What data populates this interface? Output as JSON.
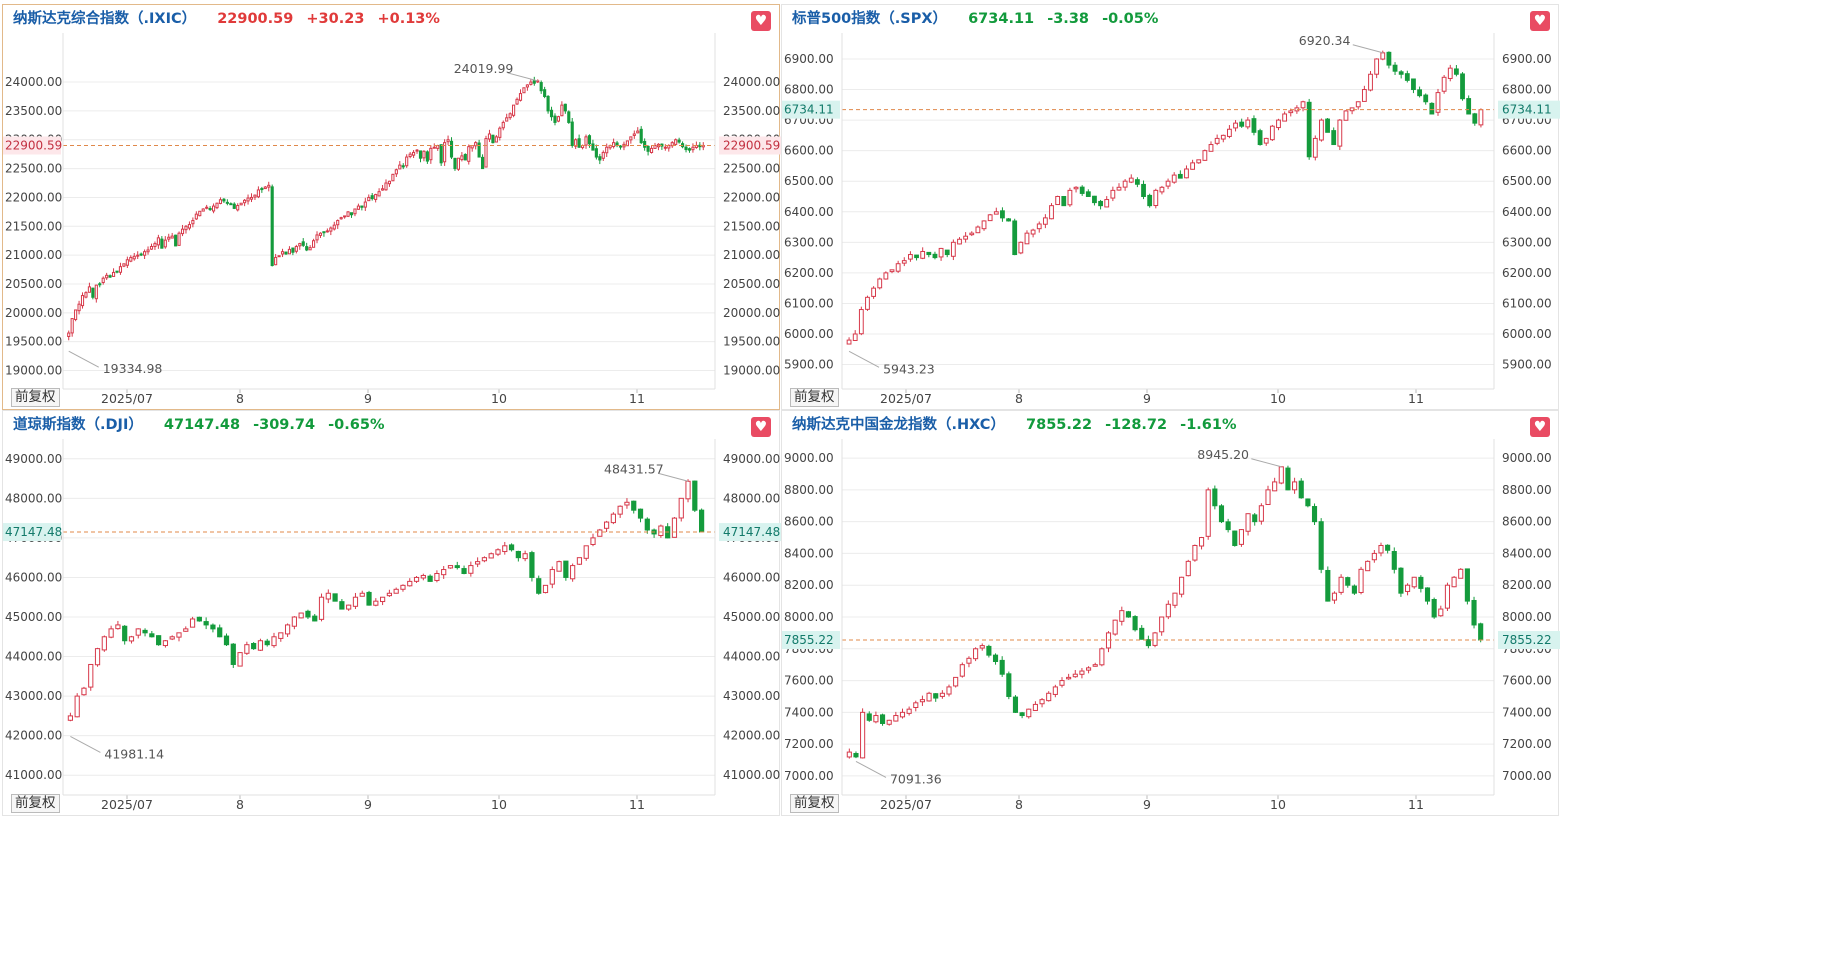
{
  "colors": {
    "up": "#d7394a",
    "down": "#149b3c",
    "ref": "#e0884a",
    "grid": "#ececec",
    "axis": "#444444",
    "name": "#1a5ea8"
  },
  "adjust_label": "前复权",
  "fav_icon": "heart-icon",
  "panels": [
    {
      "name": "纳斯达克综合指数（.IXIC）",
      "price": "22900.59",
      "change": "+30.23",
      "pct": "+0.13%",
      "direction": "up",
      "last_label": "22900.59",
      "max_label": "24019.99",
      "min_label": "19334.98",
      "chart_data": {
        "type": "candlestick",
        "y_ticks": [
          "24000.00",
          "23500.00",
          "23000.00",
          "22500.00",
          "22000.00",
          "21500.00",
          "21000.00",
          "20500.00",
          "20000.00",
          "19500.00",
          "19000.00"
        ],
        "ylim": [
          18680,
          24850
        ],
        "x_ticks": [
          {
            "label": "2025/07",
            "i": 14
          },
          {
            "label": "8",
            "i": 56
          },
          {
            "label": "9",
            "i": 95
          },
          {
            "label": "10",
            "i": 135
          },
          {
            "label": "11",
            "i": 177
          }
        ],
        "last": 22900.59,
        "max": 24019.99,
        "min": 19334.98,
        "closes": [
          19650,
          19900,
          20050,
          20150,
          20300,
          20350,
          20450,
          20270,
          20480,
          20500,
          20600,
          20650,
          20620,
          20700,
          20710,
          20800,
          20850,
          20920,
          20960,
          20980,
          21000,
          21010,
          21060,
          21090,
          21150,
          21200,
          21300,
          21120,
          21260,
          21310,
          21330,
          21160,
          21380,
          21450,
          21500,
          21530,
          21600,
          21710,
          21760,
          21800,
          21830,
          21790,
          21850,
          21900,
          21960,
          21940,
          21910,
          21890,
          21810,
          21860,
          21900,
          21950,
          21990,
          22000,
          22040,
          22130,
          22150,
          22180,
          22210,
          20820,
          20960,
          20990,
          21060,
          21020,
          21100,
          21050,
          21150,
          21200,
          21170,
          21090,
          21130,
          21250,
          21350,
          21380,
          21390,
          21420,
          21470,
          21520,
          21600,
          21650,
          21680,
          21750,
          21700,
          21800,
          21850,
          21830,
          21920,
          22000,
          21980,
          22050,
          22100,
          22150,
          22250,
          22280,
          22400,
          22480,
          22560,
          22530,
          22700,
          22750,
          22780,
          22820,
          22680,
          22800,
          22630,
          22850,
          22870,
          22900,
          22600,
          22950,
          23000,
          22700,
          22500,
          22680,
          22720,
          22650,
          22880,
          22900,
          22950,
          22700,
          22500,
          23020,
          23100,
          22950,
          23050,
          23200,
          23300,
          23380,
          23450,
          23600,
          23700,
          23800,
          23900,
          23950,
          24000,
          23980,
          24019,
          23850,
          23750,
          23500,
          23400,
          23300,
          23400,
          23600,
          23500,
          23300,
          22900,
          23000,
          22870,
          22900,
          23050,
          22930,
          22820,
          22700,
          22650,
          22780,
          22870,
          22900,
          22950,
          22900,
          22880,
          22920,
          22980,
          23050,
          23100,
          23150,
          22950,
          22870,
          22800,
          22850,
          22900,
          22920,
          22890,
          22870,
          22900,
          22950,
          23000,
          22960,
          22880,
          22830,
          22820,
          22870,
          22900,
          22880,
          22900.59
        ],
        "n_override": 148
      }
    },
    {
      "name": "标普500指数（.SPX）",
      "price": "6734.11",
      "change": "-3.38",
      "pct": "-0.05%",
      "direction": "down",
      "last_label": "6734.11",
      "max_label": "6920.34",
      "min_label": "5943.23",
      "chart_data": {
        "type": "candlestick",
        "y_ticks": [
          "6900.00",
          "6800.00",
          "6700.00",
          "6600.00",
          "6500.00",
          "6400.00",
          "6300.00",
          "6200.00",
          "6100.00",
          "6000.00",
          "5900.00"
        ],
        "ylim": [
          5820,
          6985
        ],
        "x_ticks": [
          {
            "label": "2025/07",
            "i": 14
          },
          {
            "label": "8",
            "i": 56
          },
          {
            "label": "9",
            "i": 95
          },
          {
            "label": "10",
            "i": 135
          },
          {
            "label": "11",
            "i": 177
          }
        ],
        "last": 6734.11,
        "max": 6920.34,
        "min": 5943.23,
        "closes": [
          5980,
          6000,
          6080,
          6120,
          6150,
          6180,
          6200,
          6210,
          6230,
          6240,
          6260,
          6250,
          6270,
          6260,
          6250,
          6280,
          6260,
          6300,
          6310,
          6320,
          6330,
          6350,
          6370,
          6390,
          6400,
          6380,
          6370,
          6260,
          6300,
          6330,
          6340,
          6360,
          6380,
          6420,
          6450,
          6420,
          6470,
          6480,
          6460,
          6450,
          6430,
          6420,
          6440,
          6470,
          6480,
          6500,
          6510,
          6490,
          6450,
          6420,
          6470,
          6480,
          6500,
          6520,
          6510,
          6540,
          6560,
          6570,
          6600,
          6620,
          6640,
          6650,
          6670,
          6690,
          6680,
          6700,
          6660,
          6620,
          6640,
          6680,
          6700,
          6720,
          6730,
          6740,
          6760,
          6580,
          6640,
          6700,
          6660,
          6620,
          6700,
          6730,
          6740,
          6760,
          6800,
          6850,
          6900,
          6920,
          6880,
          6860,
          6850,
          6830,
          6800,
          6780,
          6760,
          6720,
          6790,
          6840,
          6870,
          6850,
          6770,
          6720,
          6690,
          6734
        ],
        "n_override": 118
      }
    },
    {
      "name": "道琼斯指数（.DJI）",
      "price": "47147.48",
      "change": "-309.74",
      "pct": "-0.65%",
      "direction": "down",
      "last_label": "47147.48",
      "max_label": "48431.57",
      "min_label": "41981.14",
      "chart_data": {
        "type": "candlestick",
        "y_ticks": [
          "49000.00",
          "48000.00",
          "47000.00",
          "46000.00",
          "45000.00",
          "44000.00",
          "43000.00",
          "42000.00",
          "41000.00"
        ],
        "ylim": [
          40500,
          49500
        ],
        "x_ticks": [
          {
            "label": "2025/07",
            "i": 14
          },
          {
            "label": "8",
            "i": 56
          },
          {
            "label": "9",
            "i": 95
          },
          {
            "label": "10",
            "i": 135
          },
          {
            "label": "11",
            "i": 177
          }
        ],
        "last": 47147.48,
        "max": 48431.57,
        "min": 41981.14,
        "closes": [
          42500,
          43000,
          43200,
          43800,
          44200,
          44500,
          44700,
          44800,
          44400,
          44500,
          44700,
          44600,
          44500,
          44300,
          44400,
          44500,
          44600,
          44700,
          44950,
          44900,
          44800,
          44700,
          44500,
          44300,
          43800,
          44100,
          44300,
          44200,
          44400,
          44300,
          44500,
          44600,
          44800,
          45000,
          45100,
          45000,
          44900,
          45500,
          45600,
          45400,
          45200,
          45300,
          45500,
          45600,
          45300,
          45400,
          45500,
          45600,
          45700,
          45800,
          45900,
          46000,
          46050,
          45900,
          46100,
          46200,
          46300,
          46250,
          46100,
          46300,
          46400,
          46500,
          46600,
          46700,
          46800,
          46700,
          46500,
          46600,
          46000,
          45600,
          45800,
          46200,
          46400,
          46000,
          46300,
          46500,
          46800,
          47000,
          47200,
          47400,
          47600,
          47800,
          47900,
          47700,
          47500,
          47200,
          47100,
          47300,
          47000,
          47500,
          48000,
          48431,
          47700,
          47150
        ],
        "n_override": 118
      }
    },
    {
      "name": "纳斯达克中国金龙指数（.HXC）",
      "price": "7855.22",
      "change": "-128.72",
      "pct": "-1.61%",
      "direction": "down",
      "last_label": "7855.22",
      "max_label": "8945.20",
      "min_label": "7091.36",
      "chart_data": {
        "type": "candlestick",
        "y_ticks": [
          "9000.00",
          "8800.00",
          "8600.00",
          "8400.00",
          "8200.00",
          "8000.00",
          "7800.00",
          "7600.00",
          "7400.00",
          "7200.00",
          "7000.00"
        ],
        "ylim": [
          6880,
          9120
        ],
        "x_ticks": [
          {
            "label": "2025/07",
            "i": 14
          },
          {
            "label": "8",
            "i": 56
          },
          {
            "label": "9",
            "i": 95
          },
          {
            "label": "10",
            "i": 135
          },
          {
            "label": "11",
            "i": 177
          }
        ],
        "last": 7855.22,
        "max": 8945.2,
        "min": 7091.36,
        "closes": [
          7150,
          7120,
          7400,
          7350,
          7380,
          7330,
          7350,
          7380,
          7400,
          7420,
          7460,
          7480,
          7520,
          7490,
          7520,
          7560,
          7620,
          7700,
          7740,
          7800,
          7820,
          7760,
          7720,
          7640,
          7500,
          7400,
          7380,
          7420,
          7450,
          7480,
          7520,
          7560,
          7600,
          7620,
          7640,
          7660,
          7680,
          7700,
          7800,
          7900,
          7980,
          8040,
          8000,
          7920,
          7860,
          7820,
          7900,
          8000,
          8080,
          8150,
          8250,
          8350,
          8450,
          8500,
          8800,
          8700,
          8600,
          8550,
          8450,
          8550,
          8650,
          8600,
          8700,
          8800,
          8850,
          8945,
          8800,
          8850,
          8750,
          8700,
          8600,
          8300,
          8100,
          8150,
          8250,
          8200,
          8150,
          8300,
          8350,
          8400,
          8450,
          8420,
          8300,
          8150,
          8200,
          8250,
          8180,
          8100,
          8000,
          8050,
          8200,
          8250,
          8300,
          8100,
          7950,
          7855.22
        ],
        "n_override": 96
      }
    }
  ]
}
